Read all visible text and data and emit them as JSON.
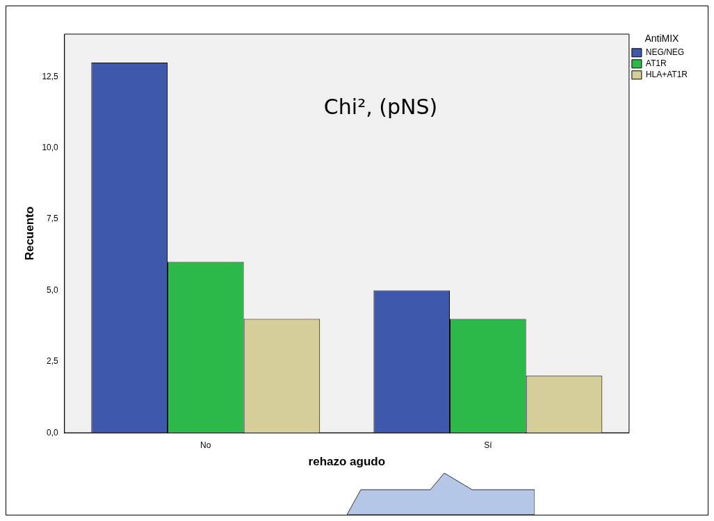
{
  "chart_data": {
    "type": "bar",
    "xlabel": "rehazo agudo",
    "ylabel": "Recuento",
    "legend_title": "AntiMIX",
    "legend": "top right",
    "grid": false,
    "categories": [
      "No",
      "Sí"
    ],
    "series": [
      {
        "name": "NEG/NEG",
        "color": "#3e58ac",
        "values": [
          13,
          5
        ]
      },
      {
        "name": "AT1R",
        "color": "#2db84a",
        "values": [
          6,
          4
        ]
      },
      {
        "name": "HLA+AT1R",
        "color": "#d5ce98",
        "values": [
          4,
          2
        ]
      }
    ],
    "ylim": [
      0,
      14
    ],
    "yticks": [
      {
        "value": 0,
        "label": "0,0"
      },
      {
        "value": 2.5,
        "label": "2,5"
      },
      {
        "value": 5,
        "label": "5,0"
      },
      {
        "value": 7.5,
        "label": "7,5"
      },
      {
        "value": 10,
        "label": "10,0"
      },
      {
        "value": 12.5,
        "label": "12,5"
      }
    ],
    "annotations": [
      "Chi², (pNS)"
    ]
  }
}
